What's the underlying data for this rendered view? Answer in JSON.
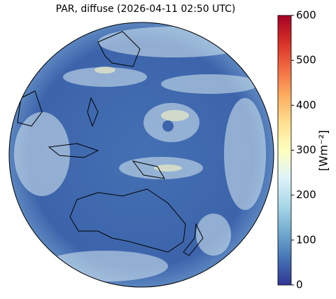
{
  "title": "PAR, diffuse (2026-04-11 02:50 UTC)",
  "colorbar": {
    "label": "[Wm⁻²]",
    "range": [
      0,
      600
    ],
    "ticks": [
      0,
      100,
      200,
      300,
      400,
      500,
      600
    ],
    "colors": [
      "#313695",
      "#4575b4",
      "#74add1",
      "#abd9e9",
      "#e0f3f8",
      "#ffffbf",
      "#fee090",
      "#fdae61",
      "#f46d43",
      "#d73027",
      "#a50026"
    ]
  }
}
